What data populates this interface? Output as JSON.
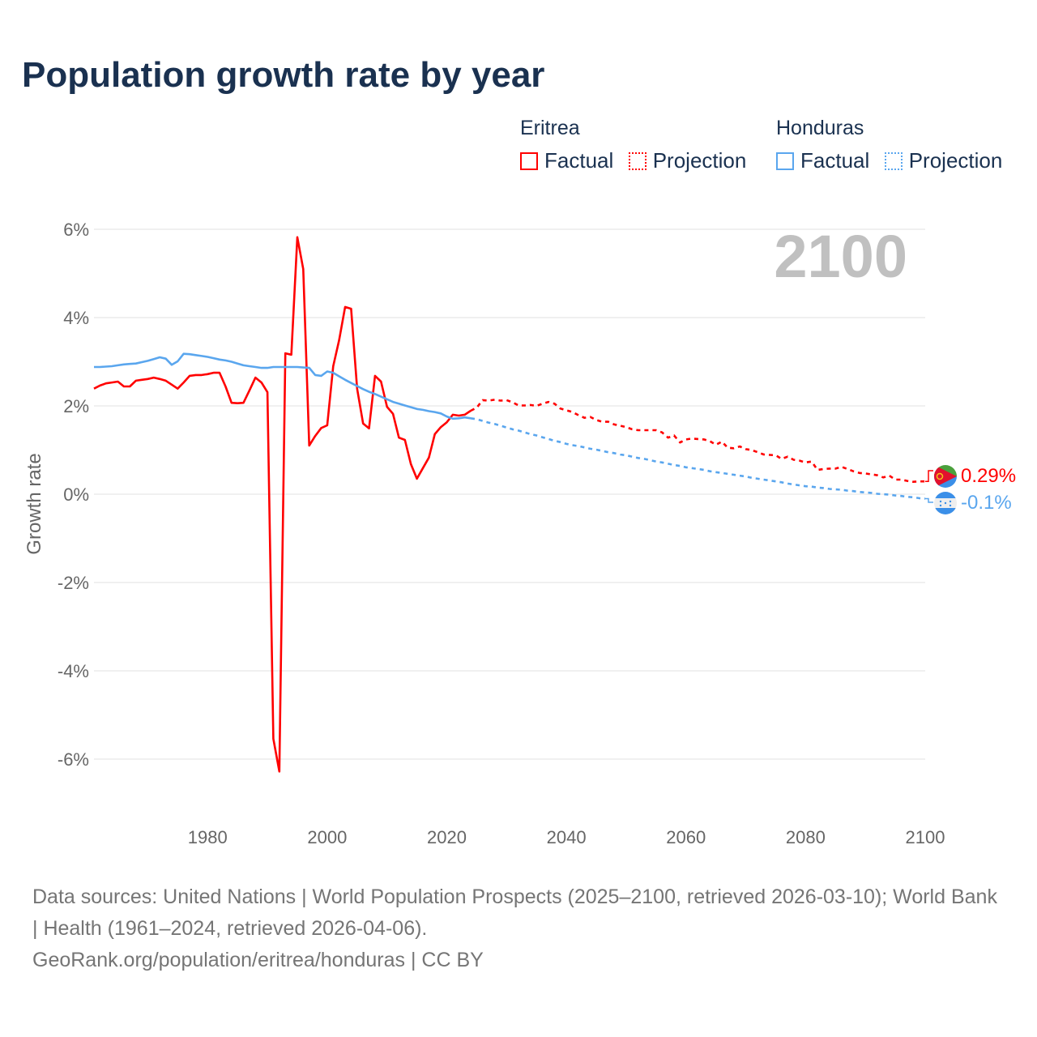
{
  "title": "Population growth rate by year",
  "legend": {
    "groups": [
      {
        "name": "Eritrea",
        "color": "#ff0000",
        "factual": "Factual",
        "projection": "Projection"
      },
      {
        "name": "Honduras",
        "color": "#5aa6ee",
        "factual": "Factual",
        "projection": "Projection"
      }
    ]
  },
  "year_display": "2100",
  "end_labels": {
    "eritrea": "0.29%",
    "honduras": "-0.1%"
  },
  "footer": {
    "sources": "Data sources: United Nations | World Population Prospects (2025–2100, retrieved 2026-03-10); World Bank | Health (1961–2024, retrieved 2026-04-06).",
    "credit": "GeoRank.org/population/eritrea/honduras | CC BY"
  },
  "chart_data": {
    "type": "line",
    "title": "Population growth rate by year",
    "xlabel": "",
    "ylabel": "Growth rate",
    "xlim": [
      1961,
      2100
    ],
    "ylim": [
      -6.8,
      6.2
    ],
    "grid": true,
    "x_ticks": [
      "1980",
      "2000",
      "2020",
      "2040",
      "2060",
      "2080",
      "2100"
    ],
    "x_tick_values": [
      1980,
      2000,
      2020,
      2040,
      2060,
      2080,
      2100
    ],
    "y_ticks": [
      "6%",
      "4%",
      "2%",
      "0%",
      "-2%",
      "-4%",
      "-6%"
    ],
    "y_tick_values": [
      6,
      4,
      2,
      0,
      -2,
      -4,
      -6
    ],
    "legend_position": "top-right",
    "series": [
      {
        "name": "Eritrea",
        "kind": "Factual",
        "color": "#ff0000",
        "start_year": 1961,
        "values": [
          2.39,
          2.46,
          2.51,
          2.53,
          2.55,
          2.44,
          2.44,
          2.57,
          2.59,
          2.61,
          2.64,
          2.61,
          2.57,
          2.48,
          2.39,
          2.53,
          2.68,
          2.7,
          2.7,
          2.72,
          2.75,
          2.75,
          2.44,
          2.07,
          2.06,
          2.07,
          2.35,
          2.64,
          2.53,
          2.31,
          -5.54,
          -6.28,
          3.19,
          3.16,
          5.82,
          5.1,
          1.1,
          1.32,
          1.5,
          1.56,
          2.9,
          3.49,
          4.24,
          4.2,
          2.39,
          1.6,
          1.49,
          2.68,
          2.55,
          1.98,
          1.82,
          1.28,
          1.23,
          0.68,
          0.35,
          0.59,
          0.83,
          1.36,
          1.52,
          1.63,
          1.8,
          1.78,
          1.8,
          1.89
        ]
      },
      {
        "name": "Eritrea",
        "kind": "Projection",
        "color": "#ff0000",
        "start_year": 2025,
        "values": [
          1.96,
          2.13,
          2.12,
          2.14,
          2.12,
          2.13,
          2.08,
          2.01,
          2.01,
          2.02,
          2.0,
          2.05,
          2.09,
          2.05,
          1.94,
          1.9,
          1.86,
          1.79,
          1.73,
          1.75,
          1.68,
          1.64,
          1.64,
          1.58,
          1.55,
          1.52,
          1.47,
          1.45,
          1.45,
          1.45,
          1.45,
          1.4,
          1.28,
          1.33,
          1.17,
          1.24,
          1.26,
          1.25,
          1.24,
          1.2,
          1.12,
          1.19,
          1.05,
          1.04,
          1.08,
          1.02,
          1.0,
          0.95,
          0.9,
          0.89,
          0.88,
          0.8,
          0.85,
          0.78,
          0.76,
          0.72,
          0.74,
          0.55,
          0.57,
          0.58,
          0.58,
          0.62,
          0.57,
          0.52,
          0.48,
          0.47,
          0.45,
          0.43,
          0.38,
          0.42,
          0.33,
          0.33,
          0.3,
          0.28,
          0.29,
          0.29
        ]
      },
      {
        "name": "Honduras",
        "kind": "Factual",
        "color": "#5aa6ee",
        "start_year": 1961,
        "values": [
          2.88,
          2.88,
          2.89,
          2.9,
          2.92,
          2.94,
          2.95,
          2.96,
          2.99,
          3.02,
          3.06,
          3.1,
          3.07,
          2.93,
          3.01,
          3.18,
          3.17,
          3.15,
          3.13,
          3.11,
          3.08,
          3.05,
          3.03,
          3.0,
          2.96,
          2.92,
          2.9,
          2.88,
          2.86,
          2.86,
          2.88,
          2.88,
          2.88,
          2.88,
          2.88,
          2.87,
          2.86,
          2.7,
          2.68,
          2.78,
          2.75,
          2.67,
          2.59,
          2.52,
          2.45,
          2.38,
          2.32,
          2.27,
          2.21,
          2.15,
          2.09,
          2.05,
          2.01,
          1.97,
          1.93,
          1.91,
          1.88,
          1.86,
          1.83,
          1.76,
          1.71,
          1.72,
          1.74,
          1.72
        ]
      },
      {
        "name": "Honduras",
        "kind": "Projection",
        "color": "#5aa6ee",
        "start_year": 2025,
        "values": [
          1.7,
          1.66,
          1.62,
          1.59,
          1.55,
          1.51,
          1.47,
          1.44,
          1.4,
          1.36,
          1.33,
          1.29,
          1.25,
          1.21,
          1.18,
          1.14,
          1.11,
          1.09,
          1.06,
          1.03,
          1.01,
          0.98,
          0.95,
          0.93,
          0.9,
          0.88,
          0.85,
          0.82,
          0.8,
          0.77,
          0.74,
          0.72,
          0.69,
          0.66,
          0.64,
          0.61,
          0.59,
          0.57,
          0.55,
          0.52,
          0.5,
          0.48,
          0.46,
          0.44,
          0.42,
          0.4,
          0.37,
          0.35,
          0.33,
          0.31,
          0.29,
          0.27,
          0.24,
          0.22,
          0.2,
          0.18,
          0.17,
          0.15,
          0.14,
          0.12,
          0.11,
          0.1,
          0.08,
          0.07,
          0.05,
          0.04,
          0.03,
          0.01,
          0.0,
          -0.01,
          -0.03,
          -0.04,
          -0.06,
          -0.07,
          -0.09,
          -0.1
        ]
      }
    ]
  }
}
